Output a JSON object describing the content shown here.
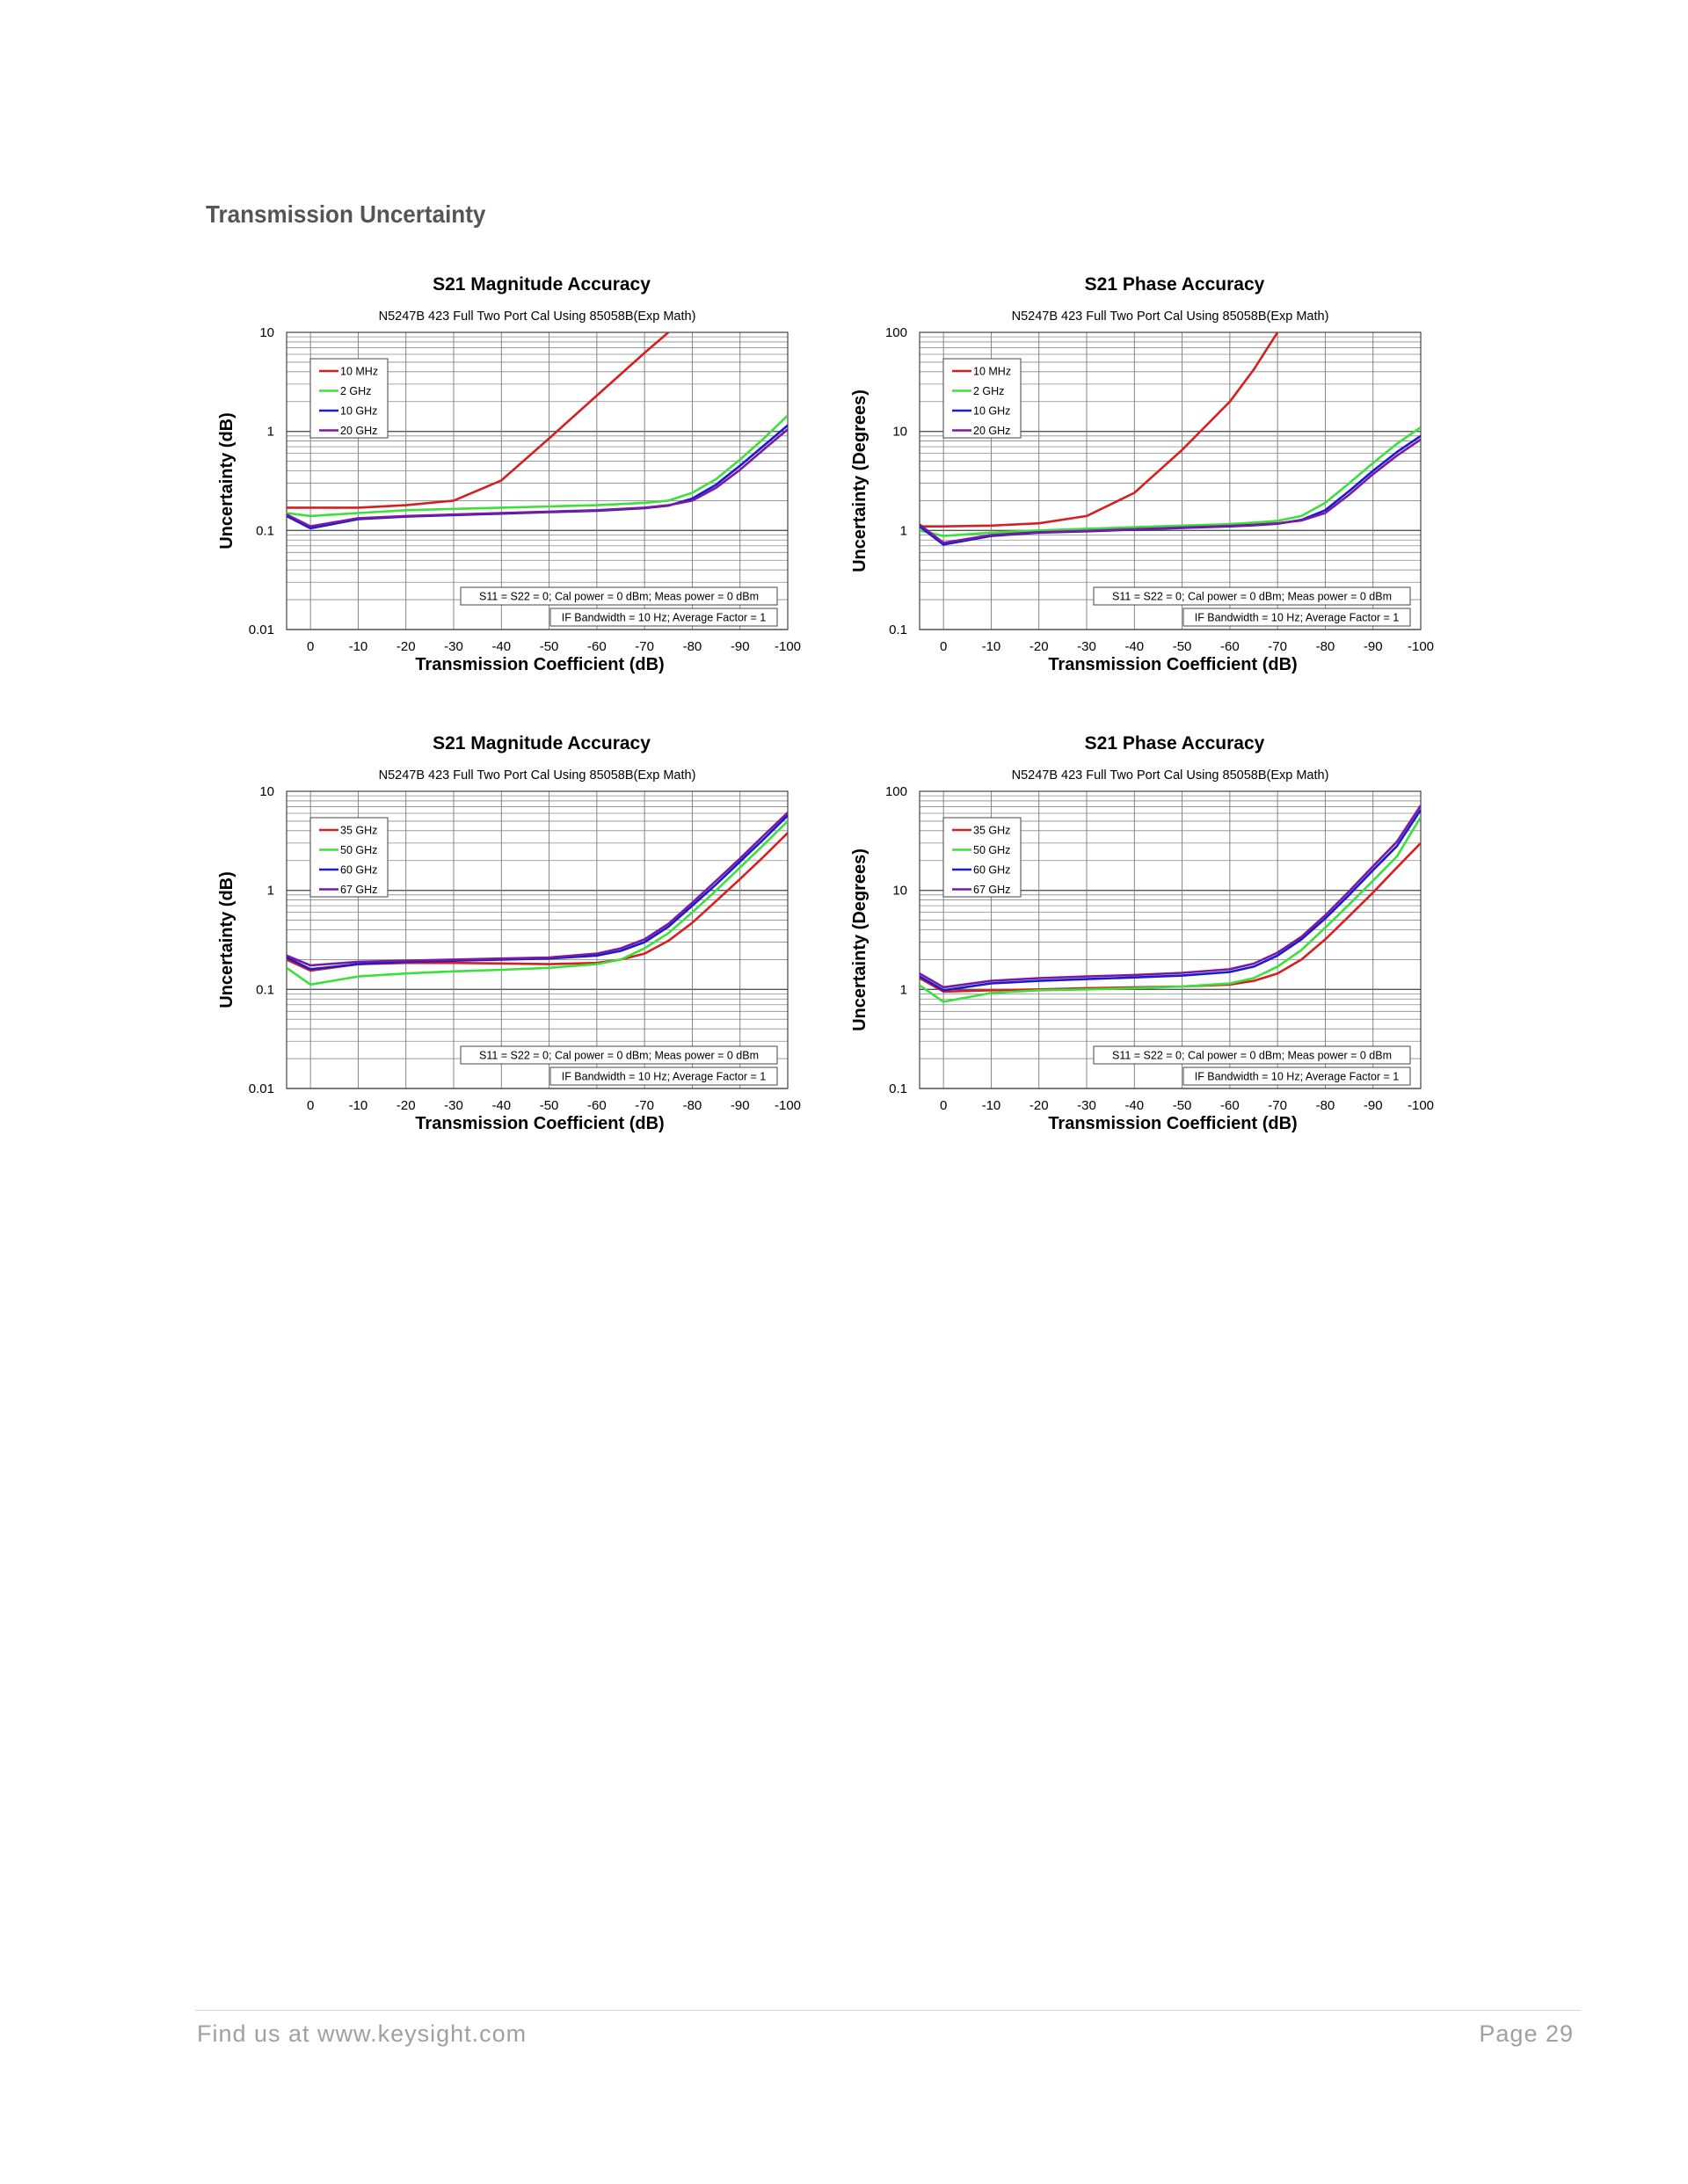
{
  "page": {
    "section_title": "Transmission Uncertainty",
    "footer_left": "Find us at www.keysight.com",
    "footer_right": "Page 29"
  },
  "chart_data": [
    {
      "type": "line",
      "title": "S21 Magnitude Accuracy",
      "subtitle": "N5247B 423 Full Two Port Cal Using 85058B(Exp Math)",
      "xlabel": "Transmission Coefficient (dB)",
      "ylabel": "Uncertainty (dB)",
      "xlim": [
        5,
        -100
      ],
      "x_ticks": [
        0,
        -10,
        -20,
        -30,
        -40,
        -50,
        -60,
        -70,
        -80,
        -90,
        -100
      ],
      "y_scale": "log",
      "ylim": [
        0.01,
        10
      ],
      "y_ticks": [
        0.01,
        0.1,
        1,
        10
      ],
      "y_tick_labels": [
        "0.01",
        "0.1",
        "1",
        "10"
      ],
      "grid": true,
      "legend_position": "top-left",
      "notes": [
        "S11 = S22 = 0; Cal power = 0 dBm; Meas power = 0 dBm",
        "IF Bandwidth = 10 Hz; Average Factor = 1"
      ],
      "x": [
        5,
        0,
        -10,
        -20,
        -30,
        -40,
        -50,
        -60,
        -70,
        -75,
        -80,
        -85,
        -90,
        -95,
        -100
      ],
      "series": [
        {
          "name": "10 MHz",
          "color": "#d42020",
          "values": [
            0.17,
            0.17,
            0.17,
            0.18,
            0.2,
            0.32,
            0.85,
            2.3,
            6.2,
            10,
            null,
            null,
            null,
            null,
            null
          ]
        },
        {
          "name": "2 GHz",
          "color": "#3ce03c",
          "values": [
            0.15,
            0.14,
            0.15,
            0.16,
            0.165,
            0.17,
            0.175,
            0.18,
            0.19,
            0.2,
            0.24,
            0.33,
            0.52,
            0.85,
            1.45
          ]
        },
        {
          "name": "10 GHz",
          "color": "#1a1ad0",
          "values": [
            0.14,
            0.105,
            0.13,
            0.138,
            0.143,
            0.148,
            0.153,
            0.158,
            0.168,
            0.178,
            0.21,
            0.29,
            0.45,
            0.72,
            1.15
          ]
        },
        {
          "name": "20 GHz",
          "color": "#7a1aa0",
          "values": [
            0.145,
            0.11,
            0.133,
            0.14,
            0.145,
            0.15,
            0.155,
            0.16,
            0.17,
            0.18,
            0.2,
            0.27,
            0.41,
            0.66,
            1.05
          ]
        }
      ]
    },
    {
      "type": "line",
      "title": "S21 Phase Accuracy",
      "subtitle": "N5247B 423 Full Two Port Cal Using 85058B(Exp Math)",
      "xlabel": "Transmission Coefficient (dB)",
      "ylabel": "Uncertainty (Degrees)",
      "xlim": [
        5,
        -100
      ],
      "x_ticks": [
        0,
        -10,
        -20,
        -30,
        -40,
        -50,
        -60,
        -70,
        -80,
        -90,
        -100
      ],
      "y_scale": "log",
      "ylim": [
        0.1,
        100
      ],
      "y_ticks": [
        0.1,
        1,
        10,
        100
      ],
      "y_tick_labels": [
        "0.1",
        "1",
        "10",
        "100"
      ],
      "grid": true,
      "legend_position": "top-left",
      "notes": [
        "S11 = S22 = 0; Cal power = 0 dBm; Meas power = 0 dBm",
        "IF Bandwidth = 10 Hz; Average Factor = 1"
      ],
      "x": [
        5,
        0,
        -10,
        -20,
        -30,
        -40,
        -50,
        -60,
        -65,
        -70,
        -75,
        -80,
        -85,
        -90,
        -95,
        -100
      ],
      "series": [
        {
          "name": "10 MHz",
          "color": "#d42020",
          "values": [
            1.1,
            1.1,
            1.12,
            1.18,
            1.4,
            2.4,
            6.5,
            20,
            42,
            100,
            null,
            null,
            null,
            null,
            null,
            null
          ]
        },
        {
          "name": "2 GHz",
          "color": "#3ce03c",
          "values": [
            1.0,
            0.88,
            0.95,
            1.0,
            1.04,
            1.08,
            1.12,
            1.16,
            1.2,
            1.25,
            1.4,
            1.9,
            3.0,
            4.8,
            7.5,
            11
          ]
        },
        {
          "name": "10 GHz",
          "color": "#1a1ad0",
          "values": [
            1.1,
            0.72,
            0.88,
            0.95,
            0.98,
            1.02,
            1.06,
            1.1,
            1.13,
            1.17,
            1.28,
            1.6,
            2.5,
            4.0,
            6.2,
            9.0
          ]
        },
        {
          "name": "20 GHz",
          "color": "#7a1aa0",
          "values": [
            1.15,
            0.75,
            0.9,
            0.96,
            0.99,
            1.03,
            1.07,
            1.11,
            1.14,
            1.18,
            1.26,
            1.5,
            2.3,
            3.7,
            5.7,
            8.3
          ]
        }
      ]
    },
    {
      "type": "line",
      "title": "S21 Magnitude Accuracy",
      "subtitle": "N5247B 423 Full Two Port Cal Using 85058B(Exp Math)",
      "xlabel": "Transmission Coefficient (dB)",
      "ylabel": "Uncertainty (dB)",
      "xlim": [
        5,
        -100
      ],
      "x_ticks": [
        0,
        -10,
        -20,
        -30,
        -40,
        -50,
        -60,
        -70,
        -80,
        -90,
        -100
      ],
      "y_scale": "log",
      "ylim": [
        0.01,
        10
      ],
      "y_ticks": [
        0.01,
        0.1,
        1,
        10
      ],
      "y_tick_labels": [
        "0.01",
        "0.1",
        "1",
        "10"
      ],
      "grid": true,
      "legend_position": "top-left",
      "notes": [
        "S11 = S22 = 0; Cal power = 0 dBm; Meas power = 0 dBm",
        "IF Bandwidth = 10 Hz; Average Factor = 1"
      ],
      "x": [
        5,
        0,
        -10,
        -20,
        -30,
        -40,
        -50,
        -60,
        -65,
        -70,
        -75,
        -80,
        -85,
        -90,
        -95,
        -100
      ],
      "series": [
        {
          "name": "35 GHz",
          "color": "#d42020",
          "values": [
            0.2,
            0.155,
            0.18,
            0.185,
            0.185,
            0.183,
            0.18,
            0.185,
            0.2,
            0.23,
            0.31,
            0.47,
            0.78,
            1.3,
            2.2,
            3.8
          ]
        },
        {
          "name": "50 GHz",
          "color": "#3ce03c",
          "values": [
            0.165,
            0.112,
            0.135,
            0.145,
            0.152,
            0.158,
            0.165,
            0.18,
            0.2,
            0.26,
            0.37,
            0.6,
            1.0,
            1.7,
            2.9,
            5.0
          ]
        },
        {
          "name": "60 GHz",
          "color": "#1a1ad0",
          "values": [
            0.21,
            0.16,
            0.18,
            0.19,
            0.195,
            0.2,
            0.205,
            0.22,
            0.245,
            0.3,
            0.43,
            0.7,
            1.15,
            1.95,
            3.3,
            5.7
          ]
        },
        {
          "name": "67 GHz",
          "color": "#7a1aa0",
          "values": [
            0.22,
            0.175,
            0.19,
            0.195,
            0.2,
            0.205,
            0.21,
            0.23,
            0.26,
            0.32,
            0.46,
            0.75,
            1.25,
            2.1,
            3.6,
            6.1
          ]
        }
      ]
    },
    {
      "type": "line",
      "title": "S21 Phase Accuracy",
      "subtitle": "N5247B 423 Full Two Port Cal Using 85058B(Exp Math)",
      "xlabel": "Transmission Coefficient (dB)",
      "ylabel": "Uncertainty (Degrees)",
      "xlim": [
        5,
        -100
      ],
      "x_ticks": [
        0,
        -10,
        -20,
        -30,
        -40,
        -50,
        -60,
        -70,
        -80,
        -90,
        -100
      ],
      "y_scale": "log",
      "ylim": [
        0.1,
        100
      ],
      "y_ticks": [
        0.1,
        1,
        10,
        100
      ],
      "y_tick_labels": [
        "0.1",
        "1",
        "10",
        "100"
      ],
      "grid": true,
      "legend_position": "top-left",
      "notes": [
        "S11 = S22 = 0; Cal power = 0 dBm; Meas power = 0 dBm",
        "IF Bandwidth = 10 Hz; Average Factor = 1"
      ],
      "x": [
        5,
        0,
        -10,
        -20,
        -30,
        -40,
        -50,
        -60,
        -65,
        -70,
        -75,
        -80,
        -85,
        -90,
        -95,
        -100
      ],
      "series": [
        {
          "name": "35 GHz",
          "color": "#d42020",
          "values": [
            1.3,
            0.95,
            0.98,
            1.0,
            1.03,
            1.05,
            1.07,
            1.12,
            1.22,
            1.45,
            2.0,
            3.2,
            5.5,
            9.5,
            17,
            30
          ]
        },
        {
          "name": "50 GHz",
          "color": "#3ce03c",
          "values": [
            1.1,
            0.75,
            0.92,
            0.98,
            1.0,
            1.03,
            1.07,
            1.15,
            1.3,
            1.7,
            2.5,
            4.2,
            7.2,
            12.5,
            22,
            55
          ]
        },
        {
          "name": "60 GHz",
          "color": "#1a1ad0",
          "values": [
            1.35,
            0.98,
            1.15,
            1.22,
            1.27,
            1.32,
            1.38,
            1.5,
            1.7,
            2.2,
            3.2,
            5.2,
            9.0,
            16,
            28,
            65
          ]
        },
        {
          "name": "67 GHz",
          "color": "#7a1aa0",
          "values": [
            1.45,
            1.05,
            1.22,
            1.3,
            1.35,
            1.4,
            1.47,
            1.6,
            1.82,
            2.35,
            3.4,
            5.6,
            9.8,
            17.5,
            31,
            72
          ]
        }
      ]
    }
  ]
}
